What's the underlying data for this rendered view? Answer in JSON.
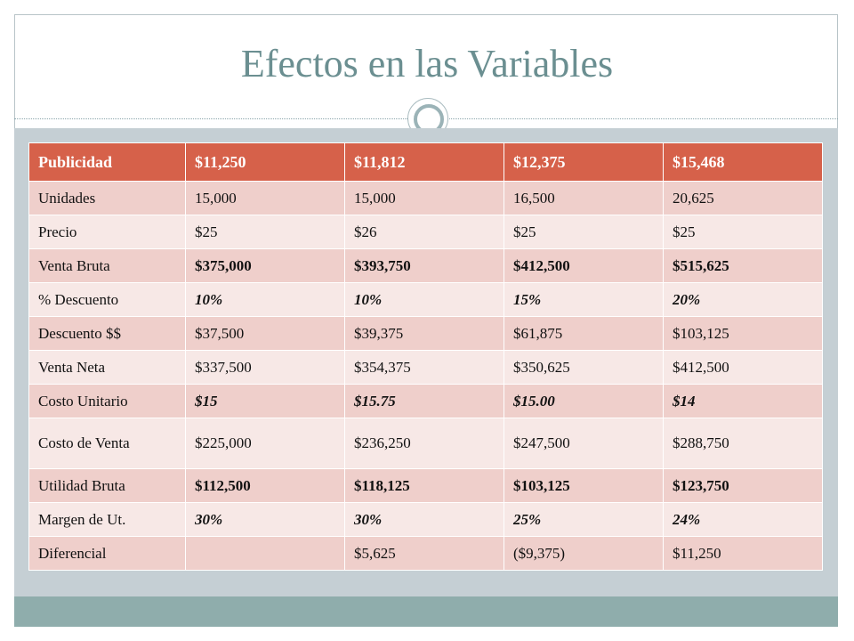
{
  "title": "Efectos en las Variables",
  "table": {
    "header": [
      "Publicidad",
      "$11,250",
      "$11,812",
      "$12,375",
      "$15,468"
    ],
    "rows": [
      {
        "label": "Unidades",
        "values": [
          "15,000",
          "15,000",
          "16,500",
          "20,625"
        ],
        "style": "normal"
      },
      {
        "label": "Precio",
        "values": [
          "$25",
          "$26",
          "$25",
          "$25"
        ],
        "style": "normal"
      },
      {
        "label": "Venta Bruta",
        "values": [
          "$375,000",
          "$393,750",
          "$412,500",
          "$515,625"
        ],
        "style": "bold"
      },
      {
        "label": "% Descuento",
        "values": [
          "10%",
          "10%",
          "15%",
          "20%"
        ],
        "style": "bold-italic"
      },
      {
        "label": "Descuento $$",
        "values": [
          "$37,500",
          "$39,375",
          "$61,875",
          "$103,125"
        ],
        "style": "normal"
      },
      {
        "label": "Venta Neta",
        "values": [
          "$337,500",
          "$354,375",
          "$350,625",
          "$412,500"
        ],
        "style": "normal"
      },
      {
        "label": "Costo Unitario",
        "values": [
          "$15",
          "$15.75",
          "$15.00",
          "$14"
        ],
        "style": "bold-italic"
      },
      {
        "label": "Costo de Venta",
        "values": [
          "$225,000",
          "$236,250",
          "$247,500",
          "$288,750"
        ],
        "style": "normal"
      },
      {
        "label": "Utilidad Bruta",
        "values": [
          "$112,500",
          "$118,125",
          "$103,125",
          "$123,750"
        ],
        "style": "bold"
      },
      {
        "label": "Margen de Ut.",
        "values": [
          "30%",
          "30%",
          "25%",
          "24%"
        ],
        "style": "bold-italic"
      },
      {
        "label": "Diferencial",
        "values": [
          "",
          "$5,625",
          "($9,375)",
          "$11,250"
        ],
        "style": "normal"
      }
    ]
  }
}
